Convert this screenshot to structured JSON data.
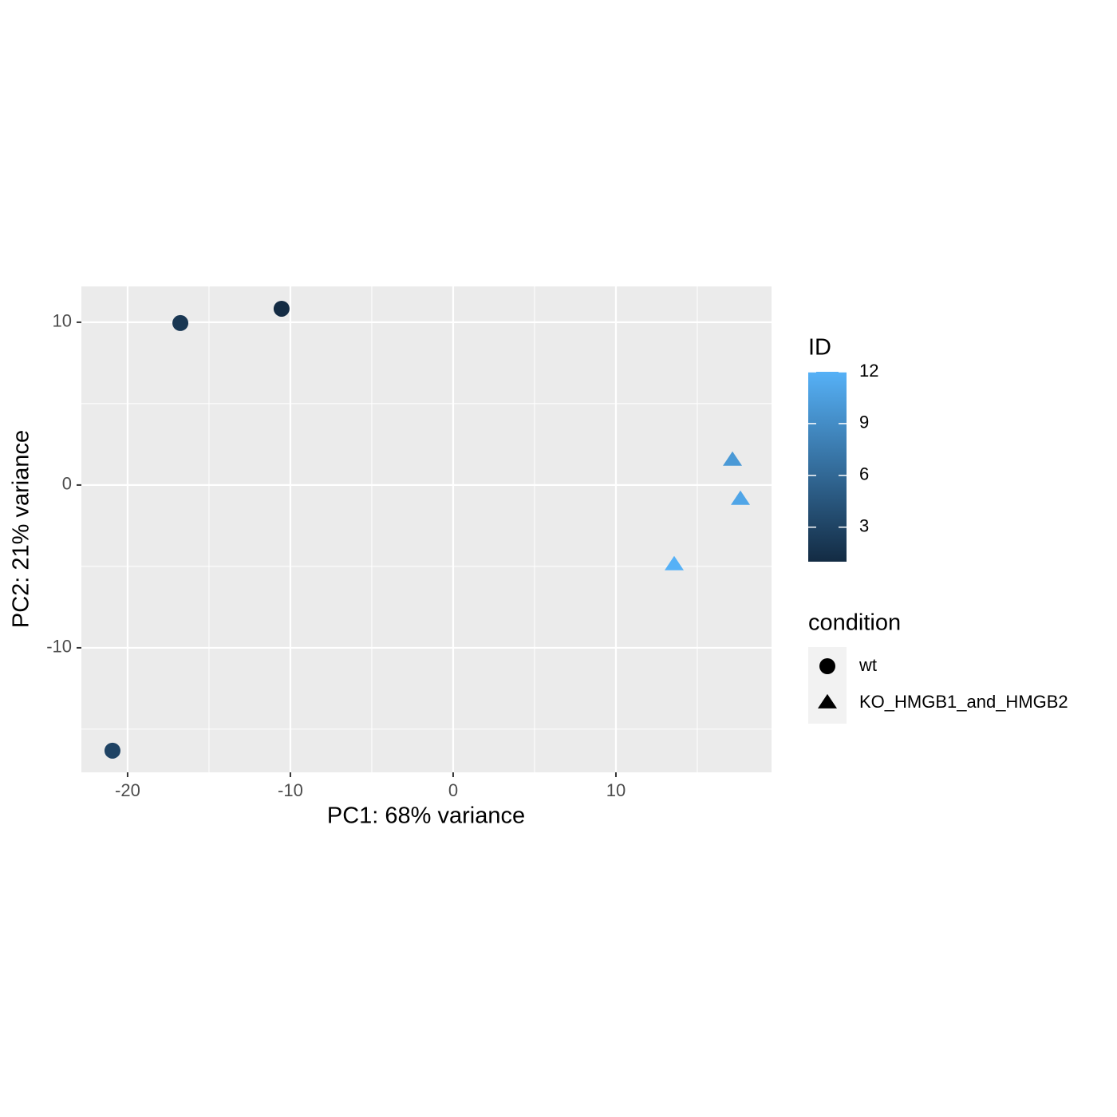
{
  "chart_data": {
    "type": "scatter",
    "xlabel": "PC1: 68% variance",
    "ylabel": "PC2: 21% variance",
    "xlim": [
      -22.84,
      19.56
    ],
    "ylim": [
      -17.65,
      12.2
    ],
    "xticks": [
      -20,
      -10,
      0,
      10
    ],
    "yticks": [
      -10,
      0,
      10
    ],
    "grid": true,
    "color_title": "ID",
    "color_low": "#132B43",
    "color_high": "#56B1F7",
    "colorlim": [
      1,
      12
    ],
    "colorticks": [
      3,
      6,
      9,
      12
    ],
    "shape_title": "condition",
    "series": [
      {
        "name": "wt",
        "shape": "circle",
        "x": [
          -20.93,
          -16.76,
          -10.54
        ],
        "values": [
          -16.32,
          9.95,
          10.83
        ],
        "ids": [
          3,
          2,
          1
        ]
      },
      {
        "name": "KO_HMGB1_and_HMGB2",
        "shape": "triangle",
        "x": [
          17.16,
          17.65,
          13.58
        ],
        "values": [
          1.52,
          -0.88,
          -4.9
        ],
        "ids": [
          10,
          11,
          12
        ]
      }
    ]
  }
}
